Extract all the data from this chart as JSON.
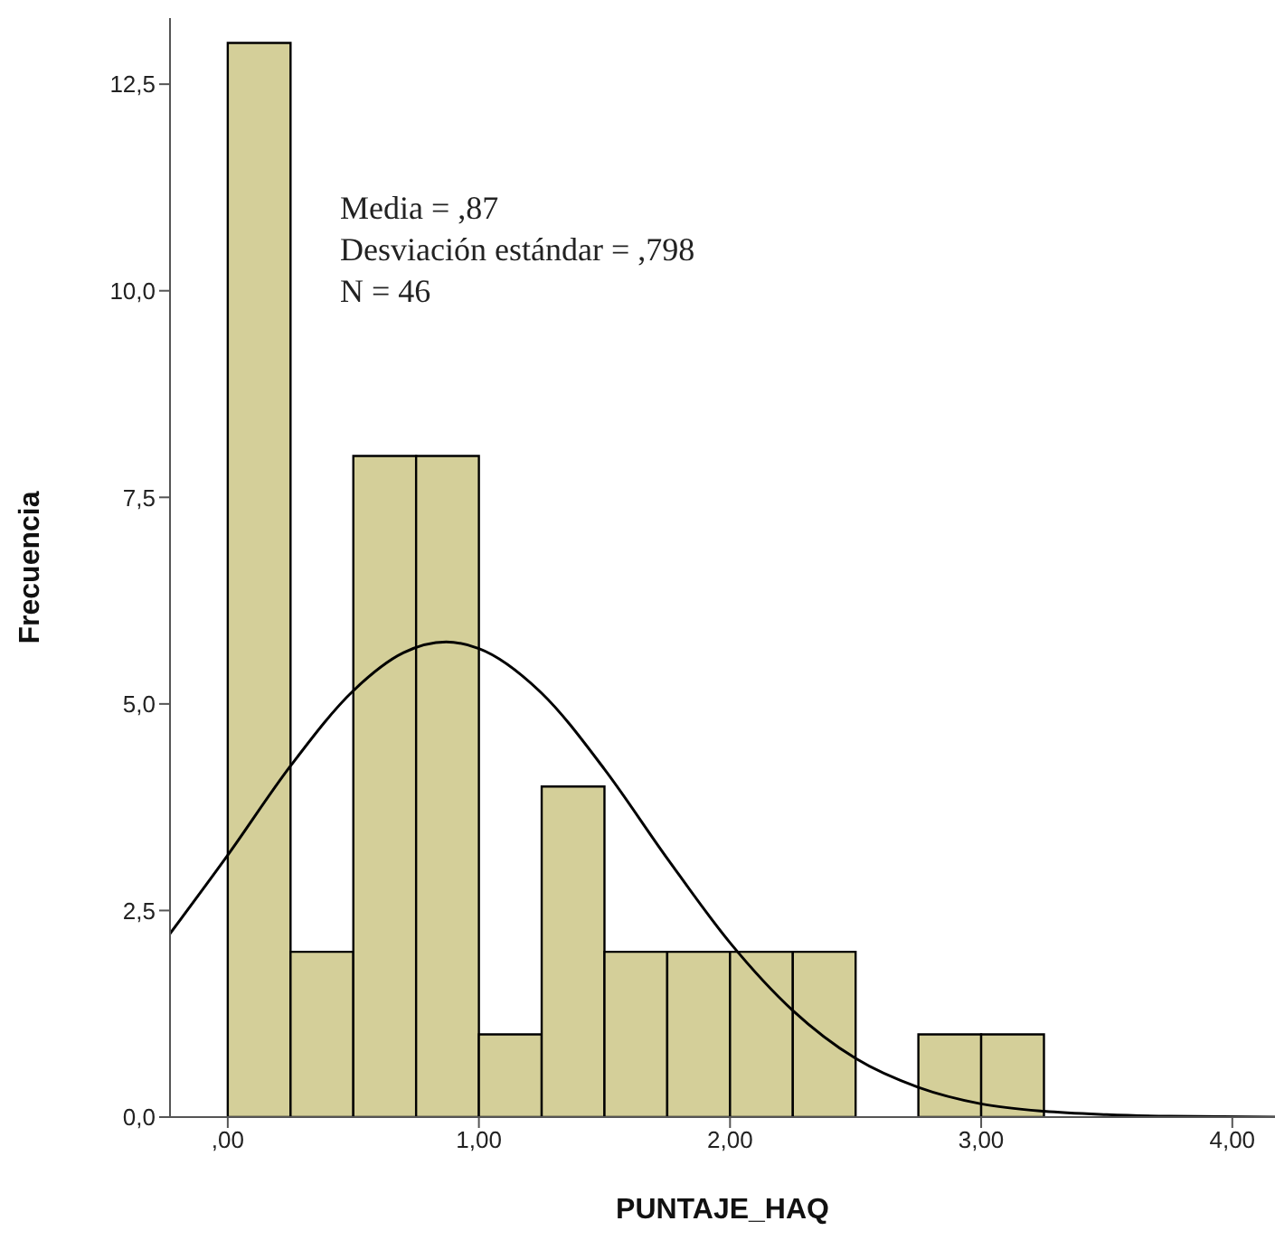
{
  "chart_data": {
    "type": "histogram",
    "xlabel": "PUNTAJE_HAQ",
    "ylabel": "Frecuencia",
    "annotations": [
      "Media = ,87",
      "Desviación estándar = ,798",
      "N = 46"
    ],
    "bins": [
      0,
      0.25,
      0.5,
      0.75,
      1,
      1.25,
      1.5,
      1.75,
      2,
      2.25,
      2.5,
      2.75,
      3,
      3.25
    ],
    "series": [
      {
        "color": "#d4cf99",
        "values": [
          13,
          2,
          8,
          8,
          1,
          4,
          2,
          2,
          2,
          2,
          0,
          1,
          1
        ]
      },
      {
        "type": "line",
        "color": "#000000",
        "x": [
          -0.23,
          0,
          0.25,
          0.5,
          0.7,
          0.87,
          1,
          1.25,
          1.5,
          1.75,
          2,
          2.25,
          2.5,
          2.75,
          3,
          3.25,
          3.5,
          3.75,
          4.17
        ],
        "values": [
          2.22,
          3.17,
          4.25,
          5.16,
          5.62,
          5.75,
          5.67,
          5.13,
          4.21,
          3.13,
          2.11,
          1.29,
          0.71,
          0.36,
          0.16,
          0.07,
          0.03,
          0.01,
          0
        ]
      }
    ],
    "xlim": [
      -0.23,
      4.17
    ],
    "xticks": [
      {
        "value": 0,
        "label": ",00"
      },
      {
        "value": 1,
        "label": "1,00"
      },
      {
        "value": 2,
        "label": "2,00"
      },
      {
        "value": 3,
        "label": "3,00"
      },
      {
        "value": 4,
        "label": "4,00"
      }
    ],
    "ylim": [
      0,
      13.3
    ],
    "yticks": [
      {
        "value": 0,
        "label": "0,0"
      },
      {
        "value": 2.5,
        "label": "2,5"
      },
      {
        "value": 5,
        "label": "5,0"
      },
      {
        "value": 7.5,
        "label": "7,5"
      },
      {
        "value": 10,
        "label": "10,0"
      },
      {
        "value": 12.5,
        "label": "12,5"
      }
    ],
    "grid": false,
    "marker": "none"
  }
}
